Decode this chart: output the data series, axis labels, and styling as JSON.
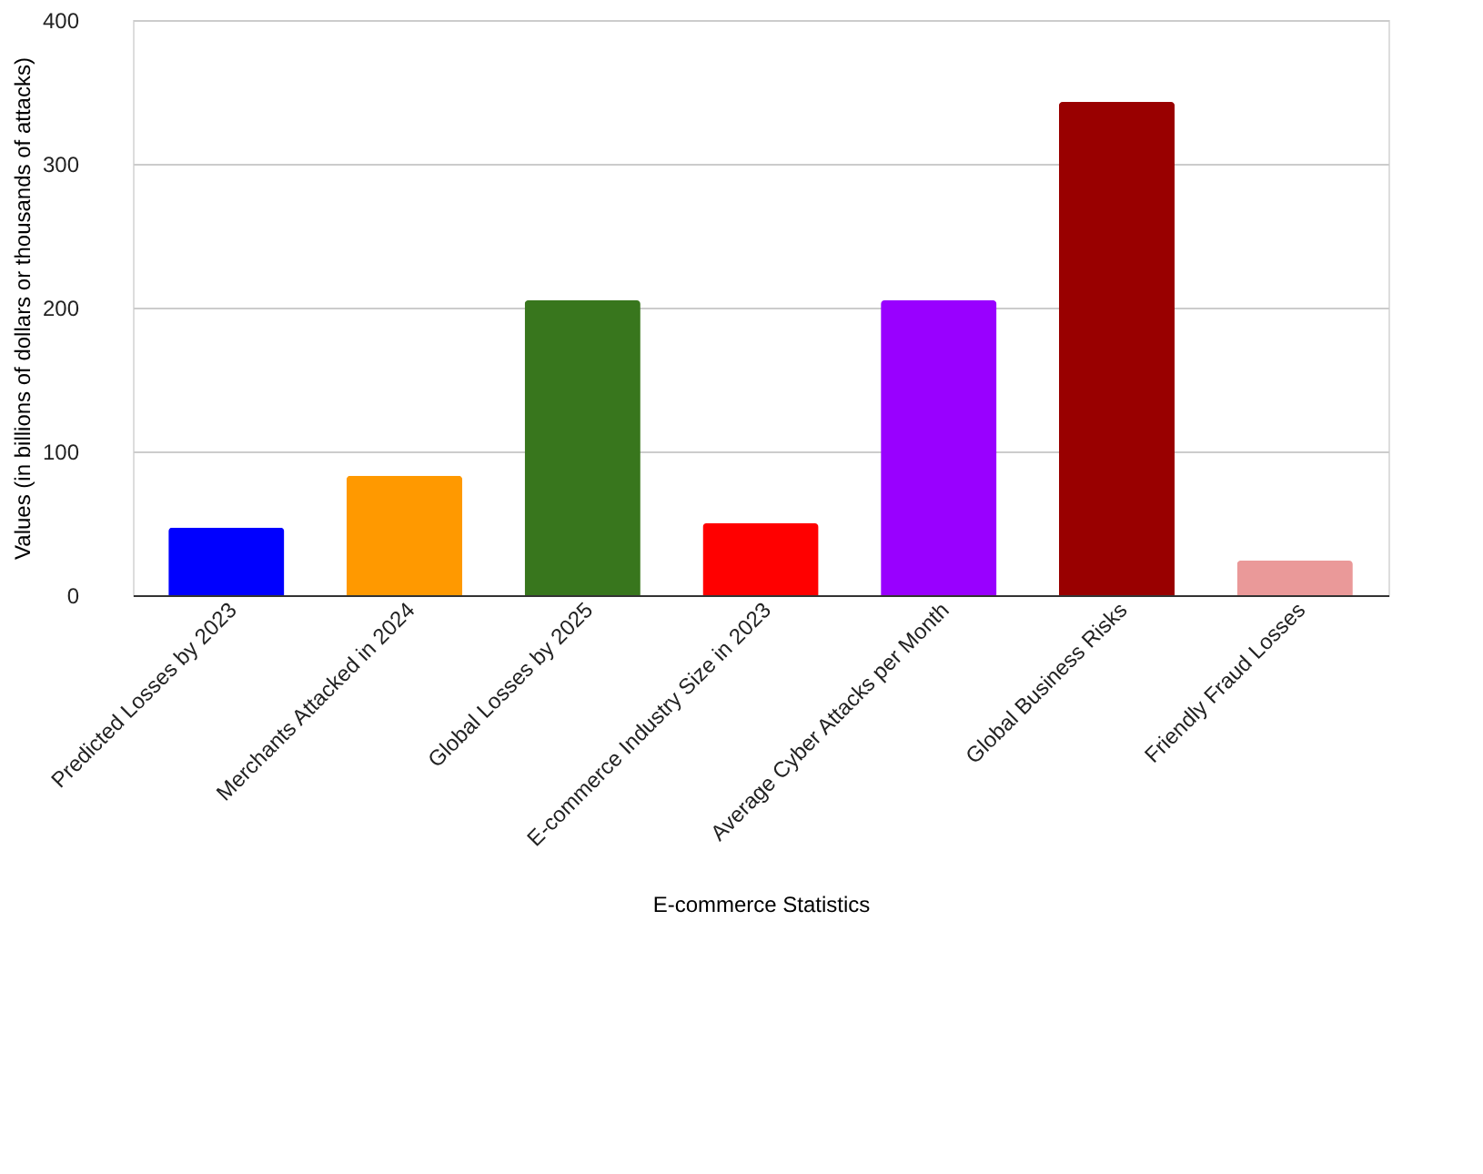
{
  "chart_data": {
    "type": "bar",
    "xlabel": "E-commerce Statistics",
    "ylabel": "Values (in billions of dollars or thousands of attacks)",
    "categories": [
      "Predicted Losses by 2023",
      "Merchants Attacked in 2024",
      "Global Losses by 2025",
      "E-commerce Industry Size in 2023",
      "Average Cyber Attacks per Month",
      "Global Business Risks",
      "Friendly Fraud Losses"
    ],
    "values": [
      47,
      83,
      205,
      50,
      205,
      343,
      24
    ],
    "colors": [
      "#0000ff",
      "#ff9900",
      "#38761d",
      "#ff0000",
      "#9900ff",
      "#990000",
      "#ea9999"
    ],
    "ylim": [
      0,
      400
    ],
    "yticks": [
      0,
      100,
      200,
      300,
      400
    ],
    "grid": "y",
    "legend": false
  }
}
